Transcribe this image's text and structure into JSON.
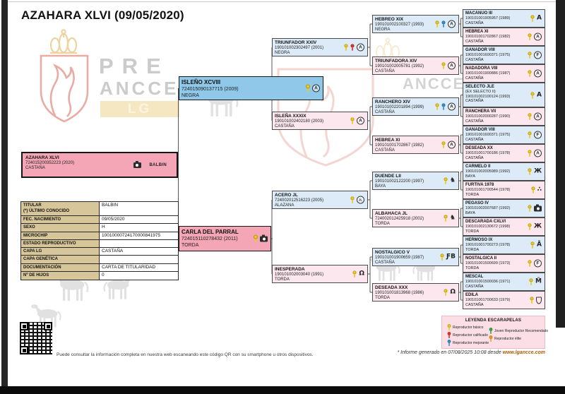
{
  "page": {
    "title": "AZAHARA XLVI (09/05/2020)",
    "qr_note": "Puede consultar la información completa en nuestra web escaneando este código QR con su smartphone u otros dispositivos.",
    "report_prefix": "* Informe generado en 07/08/2025 10:08 desde",
    "report_link": "www.lgancce.com"
  },
  "logo": {
    "word1": "PRE",
    "word2": "ANCCE",
    "badge": "LG",
    "watermark_word": "ANCCE"
  },
  "subject": {
    "name": "AZAHARA XLVI",
    "reg": "724015200352223 (2020)",
    "coat": "CASTAÑA",
    "owner": "BALBIN"
  },
  "details_table": {
    "rows": [
      {
        "label": [
          "TITULAR",
          "(*) ÚLTIMO CONOCIDO"
        ],
        "value": "BALBIN"
      },
      {
        "label": [
          "FEC. NACIMIENTO"
        ],
        "value": "09/05/2020"
      },
      {
        "label": [
          "SEXO"
        ],
        "value": "H"
      },
      {
        "label": [
          "MICROCHIP"
        ],
        "value": "10010000724170000841975"
      },
      {
        "label": [
          "ESTADO REPRODUCTIVO"
        ],
        "value": ""
      },
      {
        "label": [
          "CAPA LG"
        ],
        "value": "CASTAÑA"
      },
      {
        "label": [
          "CAPA GENÉTICA"
        ],
        "value": ""
      },
      {
        "label": [
          "DOCUMENTACIÓN"
        ],
        "value": "CARTA DE TITULARIDAD"
      },
      {
        "label": [
          "Nº DE HIJOS"
        ],
        "value": "0"
      }
    ]
  },
  "pedigree": {
    "sire": {
      "name": "ISLEÑO XCVIII",
      "reg": "724015090137715 (2009)",
      "coat": "NEGRA",
      "sex": "m",
      "ribbons": [
        "basic"
      ],
      "brand": {
        "type": "circle",
        "text": "A"
      }
    },
    "dam": {
      "name": "CARLA DEL PARRAL",
      "reg": "724015110278432 (2011)",
      "coat": "TORDA",
      "sex": "f",
      "ribbons": [
        "basic"
      ],
      "brand": {
        "type": "camera"
      }
    },
    "gen3": [
      {
        "name": "TRIUNFADOR XXIV",
        "reg": "190101002302497 (2001)",
        "coat": "NEGRA",
        "sex": "m",
        "ribbons": [
          "basic",
          "calificado"
        ],
        "brand": {
          "type": "circle",
          "text": "A"
        }
      },
      {
        "name": "ISLEÑA XXXIX",
        "reg": "190101002402180 (2003)",
        "coat": "CASTAÑA",
        "sex": "f",
        "ribbons": [
          "basic"
        ],
        "brand": {
          "type": "circle",
          "text": "A"
        }
      },
      {
        "name": "ACERO JL",
        "reg": "724002012516223 (2005)",
        "coat": "ALAZANA",
        "sex": "m",
        "ribbons": [
          "basic"
        ],
        "brand": {
          "type": "circle",
          "text": "JL"
        }
      },
      {
        "name": "INESPERADA",
        "reg": "190101002003040 (1991)",
        "coat": "TORDA",
        "sex": "f",
        "ribbons": [
          "basic"
        ],
        "brand": {
          "type": "text",
          "text": "Ω"
        }
      }
    ],
    "gen4": [
      {
        "name": "HEBREO XIX",
        "reg": "190101002100327 (1993)",
        "coat": "NEGRA",
        "sex": "m",
        "ribbons": [
          "basic",
          "mejorante"
        ],
        "brand": {
          "type": "circle",
          "text": "A"
        }
      },
      {
        "name": "TRIUNFADORA XIV",
        "reg": "190101002005781 (1992)",
        "coat": "CASTAÑA",
        "sex": "f",
        "ribbons": [
          "basic"
        ],
        "brand": {
          "type": "circle",
          "text": "A"
        }
      },
      {
        "name": "RANCHERO XIV",
        "reg": "190101002201894 (1999)",
        "coat": "CASTAÑA",
        "sex": "m",
        "ribbons": [
          "basic",
          "mejorante"
        ],
        "brand": {
          "type": "circle",
          "text": "A"
        }
      },
      {
        "name": "HEBREA XI",
        "reg": "190101001702867 (1982)",
        "coat": "CASTAÑA",
        "sex": "f",
        "ribbons": [
          "basic"
        ],
        "brand": {
          "type": "circle",
          "text": "A"
        }
      },
      {
        "name": "DUENDE LII",
        "reg": "190101002122200 (1997)",
        "coat": "BAYA",
        "sex": "m",
        "ribbons": [
          "basic"
        ],
        "brand": {
          "type": "text",
          "text": "♞"
        }
      },
      {
        "name": "ALBAHACA JL",
        "reg": "724002012425918 (2002)",
        "coat": "TORDA",
        "sex": "f",
        "ribbons": [
          "basic"
        ],
        "brand": {
          "type": "text",
          "text": "♞"
        }
      },
      {
        "name": "NOSTALGICO V",
        "reg": "190101001900659 (1987)",
        "coat": "CASTAÑA",
        "sex": "m",
        "ribbons": [
          "basic"
        ],
        "brand": {
          "type": "text",
          "text": "ƑB"
        }
      },
      {
        "name": "DESEADA XXX",
        "reg": "190101001813968 (1986)",
        "coat": "TORDA",
        "sex": "f",
        "ribbons": [
          "basic"
        ],
        "brand": {
          "type": "text",
          "text": "Ω"
        }
      }
    ],
    "gen5": [
      {
        "name": "MACANUO III",
        "reg": "190101001905957 (1989)",
        "coat": "CASTAÑA",
        "sex": "m",
        "ribbons": [
          "basic"
        ],
        "brand": {
          "type": "text",
          "text": "A"
        }
      },
      {
        "name": "HEBREA XI",
        "reg": "190101001702867 (1982)",
        "coat": "CASTAÑA",
        "sex": "f",
        "ribbons": [
          "basic"
        ],
        "brand": {
          "type": "circle",
          "text": "A"
        }
      },
      {
        "name": "GANADOR VIII",
        "reg": "190101001600371 (1975)",
        "coat": "CASTAÑA",
        "sex": "m",
        "ribbons": [
          "basic"
        ],
        "brand": {
          "type": "circle",
          "text": "F"
        }
      },
      {
        "name": "NADADORA VIII",
        "reg": "190101001900886 (1987)",
        "coat": "CASTAÑA",
        "sex": "f",
        "ribbons": [
          "basic"
        ],
        "brand": {
          "type": "circle",
          "text": "A"
        }
      },
      {
        "name": "SELECTO JLE",
        "sub": "(EX SELECTO II)",
        "reg": "190101002100124 (1993)",
        "coat": "CASTAÑA",
        "sex": "m",
        "ribbons": [
          "basic"
        ],
        "brand": {
          "type": "text",
          "text": "A"
        }
      },
      {
        "name": "RANCHERA VII",
        "reg": "190101002000287 (1990)",
        "coat": "CASTAÑA",
        "sex": "f",
        "ribbons": [
          "basic"
        ],
        "brand": {
          "type": "circle",
          "text": "A"
        }
      },
      {
        "name": "GANADOR VIII",
        "reg": "190101001600371 (1975)",
        "coat": "CASTAÑA",
        "sex": "m",
        "ribbons": [
          "basic"
        ],
        "brand": {
          "type": "circle",
          "text": "F"
        }
      },
      {
        "name": "DESEADA XX",
        "reg": "190101001700186 (1978)",
        "coat": "CASTAÑA",
        "sex": "f",
        "ribbons": [
          "basic"
        ],
        "brand": {
          "type": "circle",
          "text": "A"
        }
      },
      {
        "name": "CARMELO II",
        "reg": "190101002005989 (1992)",
        "coat": "BAYA",
        "sex": "m",
        "ribbons": [
          "basic"
        ],
        "brand": {
          "type": "text",
          "text": "Ж"
        }
      },
      {
        "name": "FURTIVA 1978",
        "reg": "190101001700544 (1978)",
        "coat": "TORDA",
        "sex": "f",
        "ribbons": [
          "basic"
        ],
        "brand": {
          "type": "text",
          "text": "∴"
        }
      },
      {
        "name": "PEGASO IV",
        "reg": "190101002007687 (1992)",
        "coat": "BAYA",
        "sex": "m",
        "ribbons": [
          "basic"
        ],
        "brand": {
          "type": "camera"
        }
      },
      {
        "name": "DESCARADA CXLVI",
        "reg": "190101002130672 (1998)",
        "coat": "TORDA",
        "sex": "f",
        "ribbons": [
          "basic"
        ],
        "brand": {
          "type": "text",
          "text": "Ж"
        }
      },
      {
        "name": "HERMOSO IX",
        "reg": "190101001700273 (1978)",
        "coat": "TORDA",
        "sex": "m",
        "ribbons": [
          "basic"
        ],
        "brand": {
          "type": "text",
          "text": "Ā"
        }
      },
      {
        "name": "NOSTALGICA II",
        "reg": "190101001500699 (1973)",
        "coat": "TORDA",
        "sex": "f",
        "ribbons": [
          "basic"
        ],
        "brand": {
          "type": "circle",
          "text": "F"
        }
      },
      {
        "name": "MESCAL",
        "reg": "190101001500036 (1971)",
        "coat": "CASTAÑA",
        "sex": "m",
        "ribbons": [
          "basic"
        ],
        "brand": {
          "type": "text",
          "text": "M̃"
        }
      },
      {
        "name": "EDILA",
        "reg": "190101001700633 (1979)",
        "coat": "CASTAÑA",
        "sex": "f",
        "ribbons": [
          "basic"
        ],
        "brand": {
          "type": "shield"
        }
      }
    ]
  },
  "legend": {
    "title": "LEYENDA ESCARAPELAS",
    "items": [
      {
        "ribbon": "basic",
        "label": "Reproductor básico"
      },
      {
        "ribbon": "calificado",
        "label": "Reproductor calificado"
      },
      {
        "ribbon": "mejorante",
        "label": "Reproductor mejorante"
      },
      {
        "ribbon": "joven",
        "label": "Joven Reproductor Recomendado"
      },
      {
        "ribbon": "elite",
        "label": "Reproductor élite"
      }
    ]
  },
  "colors": {
    "basic": "#ecc91c",
    "calificado": "#d5342e",
    "mejorante": "#2b8fd8",
    "joven": "#2fa84f",
    "elite": "#f29a1f",
    "male_box": "#dcebf7",
    "female_box": "#fce7ef",
    "sire_box": "#8fc8e9",
    "dam_box": "#f4a6b7",
    "subject_box": "#f4a6b7",
    "table_label_bg": "#d8c69b",
    "accent_link": "#b35c00"
  }
}
